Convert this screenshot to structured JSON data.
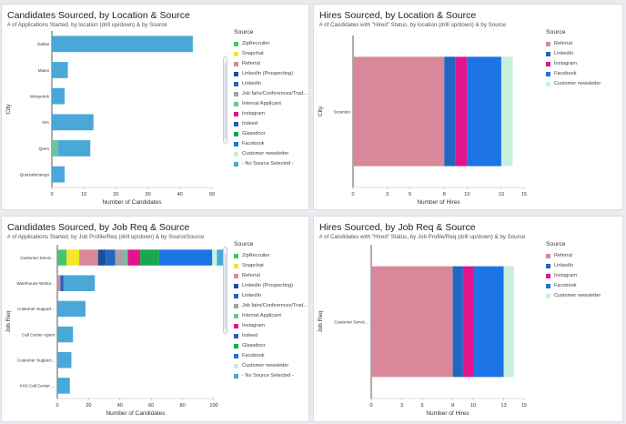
{
  "sources": {
    "ZipRecruiter": "#4cc36b",
    "Snapchat": "#f7e52a",
    "Referral": "#d9879a",
    "LinkedIn (Prospecting)": "#1f4e9e",
    "LinkedIn": "#1f67c2",
    "Job fairs/Conferences/Trad...": "#a3a3a3",
    "Internal Applicant": "#6ec49a",
    "Instagram": "#e0158a",
    "Indeed": "#2a5db0",
    "Glassdoor": "#17a84f",
    "Facebook": "#1d74e6",
    "Customer newsletter": "#c8f0dc",
    "- No Source Selected -": "#4aa8d8"
  },
  "panels": [
    {
      "title": "Candidates Sourced, by Location & Source",
      "subtitle": "# of Applications Started, by location (drill up/down) & by Source",
      "legend_title": "Source",
      "legend": [
        "ZipRecruiter",
        "Snapchat",
        "Referral",
        "LinkedIn (Prospecting)",
        "LinkedIn",
        "Job fairs/Conferences/Trad...",
        "Internal Applicant",
        "Instagram",
        "Indeed",
        "Glassdoor",
        "Facebook",
        "Customer newsletter",
        "- No Source Selected -"
      ],
      "chart_data": {
        "type": "bar",
        "orientation": "horizontal",
        "stacked": true,
        "xlabel": "Number of Candidates",
        "ylabel": "City",
        "xlim": [
          0,
          50
        ],
        "xticks": [
          0,
          10,
          20,
          30,
          40,
          50
        ],
        "categories": [
          "Dallas",
          "Miami",
          "Monyerick",
          "N/A",
          "Qrem",
          "Quetzaltenango"
        ],
        "series": [
          {
            "name": "Internal Applicant",
            "values": [
              0,
              0,
              0,
              0,
              2,
              0
            ]
          },
          {
            "name": "- No Source Selected -",
            "values": [
              44,
              5,
              4,
              13,
              10,
              4
            ]
          }
        ]
      }
    },
    {
      "title": "Hires Sourced, by Location & Source",
      "subtitle": "# of Candidates with \"Hired\" Status, by location (drill up/down) & by Source",
      "legend_title": "Source",
      "legend": [
        "Referral",
        "LinkedIn",
        "Instagram",
        "Facebook",
        "Customer newsletter"
      ],
      "chart_data": {
        "type": "bar",
        "orientation": "horizontal",
        "stacked": true,
        "xlabel": "Number of Hires",
        "ylabel": "City",
        "xlim": [
          0,
          15
        ],
        "xticks": [
          0,
          3,
          5,
          8,
          10,
          13,
          15
        ],
        "categories": [
          "Scranton"
        ],
        "series": [
          {
            "name": "Referral",
            "values": [
              8
            ]
          },
          {
            "name": "LinkedIn",
            "values": [
              1
            ]
          },
          {
            "name": "Instagram",
            "values": [
              1
            ]
          },
          {
            "name": "Facebook",
            "values": [
              3
            ]
          },
          {
            "name": "Customer newsletter",
            "values": [
              1
            ]
          }
        ]
      }
    },
    {
      "title": "Candidates Sourced, by Job Req & Source",
      "subtitle": "# of Applications Started, by Job Profile/Req (drill up/down) & by SourceSource",
      "legend_title": "Source",
      "legend": [
        "ZipRecruiter",
        "Snapchat",
        "Referral",
        "LinkedIn (Prospecting)",
        "LinkedIn",
        "Job fairs/Conferences/Trad...",
        "Internal Applicant",
        "Instagram",
        "Indeed",
        "Glassdoor",
        "Facebook",
        "Customer newsletter",
        "- No Source Selected -"
      ],
      "chart_data": {
        "type": "bar",
        "orientation": "horizontal",
        "stacked": true,
        "xlabel": "Number of Candidates",
        "ylabel": "Job Req",
        "xlim": [
          0,
          100
        ],
        "xticks": [
          0,
          20,
          40,
          60,
          80,
          100
        ],
        "categories": [
          "Customer Servic...",
          "Warehouse Worke...",
          "Customer Support...",
          "Call Center Agent",
          "Customer Support...",
          "KH2 Call Center ..."
        ],
        "series": [
          {
            "name": "ZipRecruiter",
            "values": [
              6,
              0,
              0,
              0,
              0,
              0
            ]
          },
          {
            "name": "Snapchat",
            "values": [
              8,
              0,
              0,
              0,
              0,
              0
            ]
          },
          {
            "name": "Referral",
            "values": [
              12,
              2,
              0,
              0,
              0,
              0
            ]
          },
          {
            "name": "LinkedIn (Prospecting)",
            "values": [
              5,
              0,
              0,
              0,
              0,
              0
            ]
          },
          {
            "name": "LinkedIn",
            "values": [
              6,
              2,
              0,
              0,
              0,
              0
            ]
          },
          {
            "name": "Job fairs/Conferences/Trad...",
            "values": [
              6,
              0,
              0,
              0,
              0,
              0
            ]
          },
          {
            "name": "Internal Applicant",
            "values": [
              2,
              0,
              0,
              0,
              0,
              0
            ]
          },
          {
            "name": "Instagram",
            "values": [
              8,
              0,
              0,
              0,
              0,
              0
            ]
          },
          {
            "name": "Glassdoor",
            "values": [
              12,
              0,
              0,
              0,
              0,
              0
            ]
          },
          {
            "name": "Facebook",
            "values": [
              34,
              0,
              0,
              0,
              0,
              0
            ]
          },
          {
            "name": "Customer newsletter",
            "values": [
              3,
              0,
              0,
              0,
              0,
              0
            ]
          },
          {
            "name": "- No Source Selected -",
            "values": [
              5,
              20,
              18,
              10,
              9,
              8
            ]
          }
        ]
      }
    },
    {
      "title": "Hires Sourced, by Job Req & Source",
      "subtitle": "# of Candidates with \"Hired\" Status, by Job Profile/Req (drill up/down) & by Source",
      "legend_title": "Source",
      "legend": [
        "Referral",
        "LinkedIn",
        "Instagram",
        "Facebook",
        "Customer newsletter"
      ],
      "chart_data": {
        "type": "bar",
        "orientation": "horizontal",
        "stacked": true,
        "xlabel": "Number of Hires",
        "ylabel": "Job Req",
        "xlim": [
          0,
          15
        ],
        "xticks": [
          0,
          3,
          5,
          8,
          10,
          13,
          15
        ],
        "categories": [
          "Customer Servic..."
        ],
        "series": [
          {
            "name": "Referral",
            "values": [
              8
            ]
          },
          {
            "name": "LinkedIn",
            "values": [
              1
            ]
          },
          {
            "name": "Instagram",
            "values": [
              1
            ]
          },
          {
            "name": "Facebook",
            "values": [
              3
            ]
          },
          {
            "name": "Customer newsletter",
            "values": [
              1
            ]
          }
        ]
      }
    }
  ]
}
